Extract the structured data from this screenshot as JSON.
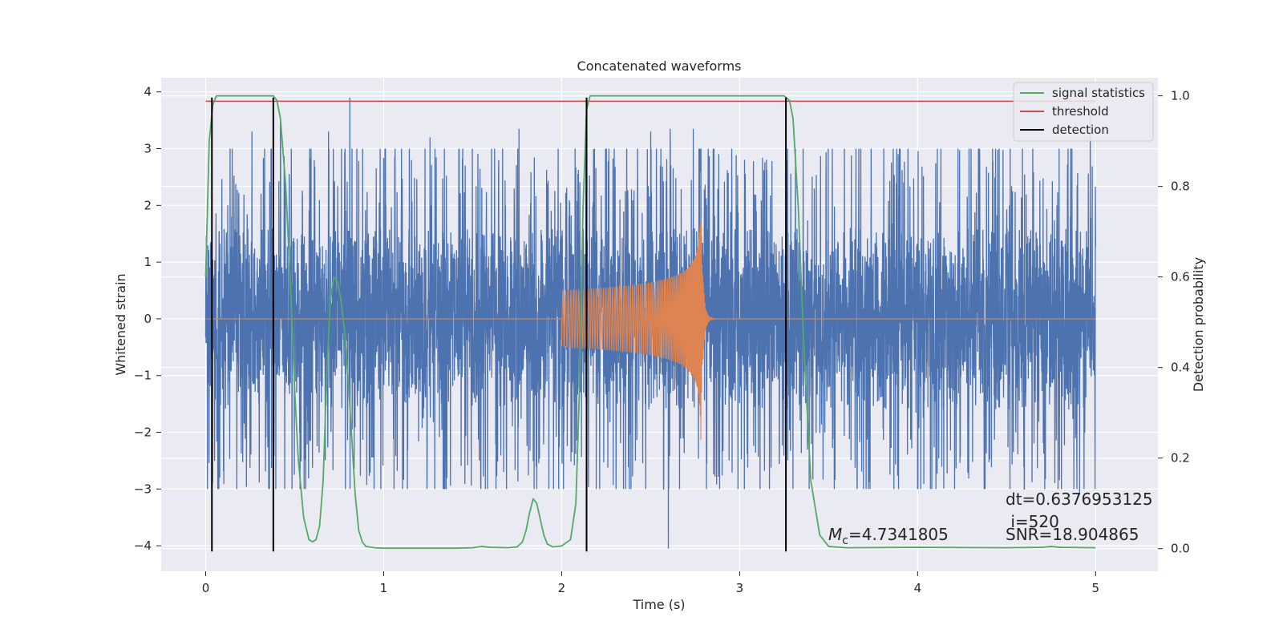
{
  "chart_data": {
    "type": "line",
    "title": "Concatenated waveforms",
    "xlabel": "Time (s)",
    "ylabel": "Whitened strain",
    "y2label": "Detection probability",
    "xlim": [
      -0.25,
      5.35
    ],
    "ylim": [
      -4.45,
      4.25
    ],
    "y2lim": [
      -0.05,
      1.04
    ],
    "xticks": [
      0,
      1,
      2,
      3,
      4,
      5
    ],
    "yticks": [
      -4,
      -3,
      -2,
      -1,
      0,
      1,
      2,
      3,
      4
    ],
    "y2ticks": [
      0.0,
      0.2,
      0.4,
      0.6,
      0.8,
      1.0
    ],
    "grid": true,
    "legend_position": "top-right",
    "legend": [
      {
        "label": "signal statistics",
        "color": "#55a868"
      },
      {
        "label": "threshold",
        "color": "#c44e52"
      },
      {
        "label": "detection",
        "color": "#000000"
      }
    ],
    "colors": {
      "background": "#eaeaf2",
      "grid": "#ffffff",
      "strain": "#4c72b0",
      "template": "#dd8452",
      "signal_statistics": "#55a868",
      "threshold": "#c44e52",
      "detection": "#000000"
    },
    "series": [
      {
        "name": "signal statistics",
        "axis": "right",
        "x": [
          0.0,
          0.02,
          0.04,
          0.06,
          0.1,
          0.2,
          0.3,
          0.36,
          0.38,
          0.4,
          0.42,
          0.45,
          0.48,
          0.5,
          0.52,
          0.55,
          0.58,
          0.6,
          0.62,
          0.64,
          0.66,
          0.68,
          0.7,
          0.72,
          0.74,
          0.76,
          0.78,
          0.8,
          0.82,
          0.84,
          0.86,
          0.88,
          0.9,
          0.95,
          1.0,
          1.2,
          1.4,
          1.5,
          1.55,
          1.6,
          1.7,
          1.75,
          1.78,
          1.8,
          1.82,
          1.84,
          1.86,
          1.88,
          1.9,
          1.92,
          1.95,
          2.0,
          2.05,
          2.08,
          2.1,
          2.12,
          2.14,
          2.16,
          2.2,
          2.5,
          2.8,
          3.1,
          3.25,
          3.28,
          3.3,
          3.33,
          3.36,
          3.4,
          3.45,
          3.5,
          3.6,
          4.0,
          4.5,
          4.7,
          4.75,
          4.8,
          5.0
        ],
        "values": [
          0.6,
          0.9,
          0.98,
          1.0,
          1.0,
          1.0,
          1.0,
          1.0,
          1.0,
          0.99,
          0.95,
          0.8,
          0.55,
          0.35,
          0.2,
          0.07,
          0.02,
          0.015,
          0.02,
          0.05,
          0.15,
          0.38,
          0.55,
          0.6,
          0.59,
          0.55,
          0.48,
          0.38,
          0.25,
          0.12,
          0.04,
          0.015,
          0.005,
          0.002,
          0.001,
          0.001,
          0.001,
          0.002,
          0.005,
          0.003,
          0.002,
          0.004,
          0.015,
          0.04,
          0.08,
          0.11,
          0.1,
          0.065,
          0.03,
          0.01,
          0.004,
          0.006,
          0.02,
          0.1,
          0.35,
          0.75,
          0.97,
          1.0,
          1.0,
          1.0,
          1.0,
          1.0,
          1.0,
          0.99,
          0.95,
          0.75,
          0.45,
          0.15,
          0.03,
          0.005,
          0.002,
          0.003,
          0.002,
          0.003,
          0.005,
          0.003,
          0.002
        ]
      },
      {
        "name": "threshold",
        "axis": "right",
        "x": [
          0.0,
          5.0
        ],
        "values": [
          0.988,
          0.988
        ]
      },
      {
        "name": "detection",
        "axis": "left",
        "vlines_x": [
          0.035,
          0.38,
          2.14,
          3.26
        ],
        "y_range": [
          -4.1,
          3.9
        ]
      },
      {
        "name": "strain",
        "axis": "left",
        "x_range": [
          0.0,
          5.0
        ],
        "description_peaks": {
          "x": [
            0.26,
            0.42,
            0.69,
            0.81,
            1.26,
            1.76,
            2.5,
            2.6,
            2.61,
            2.74,
            4.91,
            4.97
          ],
          "values": [
            3.3,
            3.5,
            3.3,
            3.9,
            3.2,
            3.35,
            3.3,
            -4.05,
            3.35,
            3.35,
            -3.1,
            3.7
          ]
        },
        "typical_amplitude": 2.3
      },
      {
        "name": "template",
        "axis": "left",
        "chirp_start": 2.0,
        "merger_time": 2.78,
        "ringdown_end": 3.0,
        "start_amplitude": 0.5,
        "peak_amplitude": 2.6
      }
    ],
    "annotations": [
      {
        "text": "dt=0.6376953125",
        "x": 4.5,
        "y": -3.3
      },
      {
        "text": " i=520",
        "x": 4.5,
        "y": -3.7
      },
      {
        "text": "SNR=18.904865",
        "x": 4.5,
        "y": -3.93
      },
      {
        "text": "=4.7341805",
        "prefix_math": "M_c",
        "x": 3.5,
        "y": -3.93
      }
    ]
  }
}
